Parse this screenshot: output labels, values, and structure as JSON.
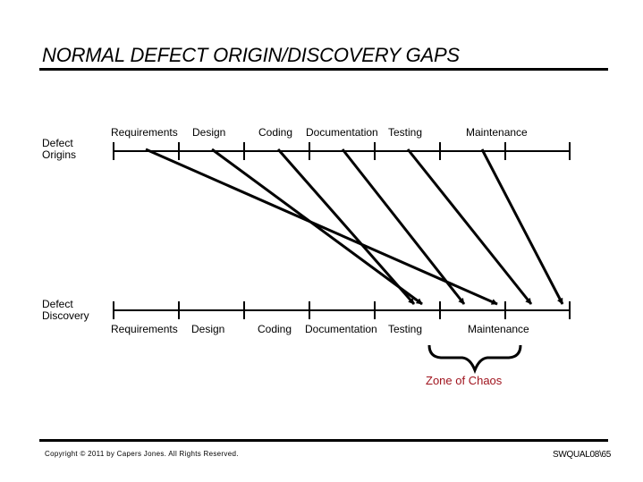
{
  "title": "NORMAL DEFECT ORIGIN/DISCOVERY GAPS",
  "left_labels": {
    "origins": [
      "Defect",
      "Origins"
    ],
    "discovery": [
      "Defect",
      "Discovery"
    ]
  },
  "top_phases": [
    "Requirements",
    "Design",
    "Coding",
    "Documentation",
    "Testing",
    "Maintenance"
  ],
  "bottom_phases": [
    "Requirements",
    "Design",
    "Coding",
    "Documentation",
    "Testing",
    "Maintenance"
  ],
  "zone_label": "Zone of Chaos",
  "colors": {
    "zone_label": "#a0141e",
    "lines": "#000000"
  },
  "footer": {
    "copyright": "Copyright © 2011 by Capers Jones. All Rights Reserved.",
    "slide_id": "SWQUAL08\\65"
  }
}
